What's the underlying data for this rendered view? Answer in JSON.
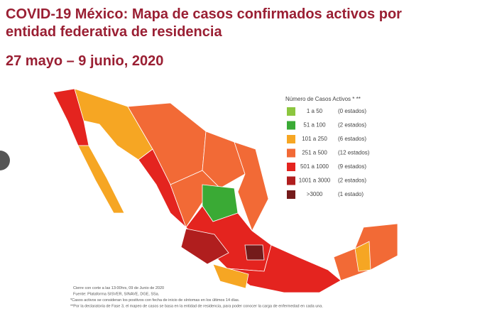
{
  "header": {
    "title_line1": "COVID-19 México: Mapa de casos confirmados activos por",
    "title_line2": "entidad federativa de residencia",
    "date": "27 mayo – 9 junio, 2020"
  },
  "legend": {
    "title": "Número de Casos Activos * **",
    "items": [
      {
        "range": "1 a 50",
        "count": "(0 estados)",
        "color": "#8cc63f"
      },
      {
        "range": "51 a 100",
        "count": "(2 estados)",
        "color": "#3aaa35"
      },
      {
        "range": "101 a 250",
        "count": "(6 estados)",
        "color": "#f6a623"
      },
      {
        "range": "251 a 500",
        "count": "(12 estados)",
        "color": "#f26a36"
      },
      {
        "range": "501 a 1000",
        "count": "(9 estados)",
        "color": "#e4241f"
      },
      {
        "range": "1001 a 3000",
        "count": "(2 estados)",
        "color": "#b01e1e"
      },
      {
        "range": ">3000",
        "count": "(1 estado)",
        "color": "#741b1b"
      }
    ]
  },
  "notes": [
    "Cierre con corte a las 13:00hrs, 09 de Junio de 2020",
    "Fuente: Plataforma SISVER, SINAVE, DGE, SSa.",
    "*Casos activos se consideran los positivos con fecha de inicio de síntomas en los últimos 14 días.",
    "**Por la declaratoria de Fase 3, el mapeo de casos se basa en la entidad de residencia, para poder conocer la carga de enfermedad en cada una."
  ]
}
